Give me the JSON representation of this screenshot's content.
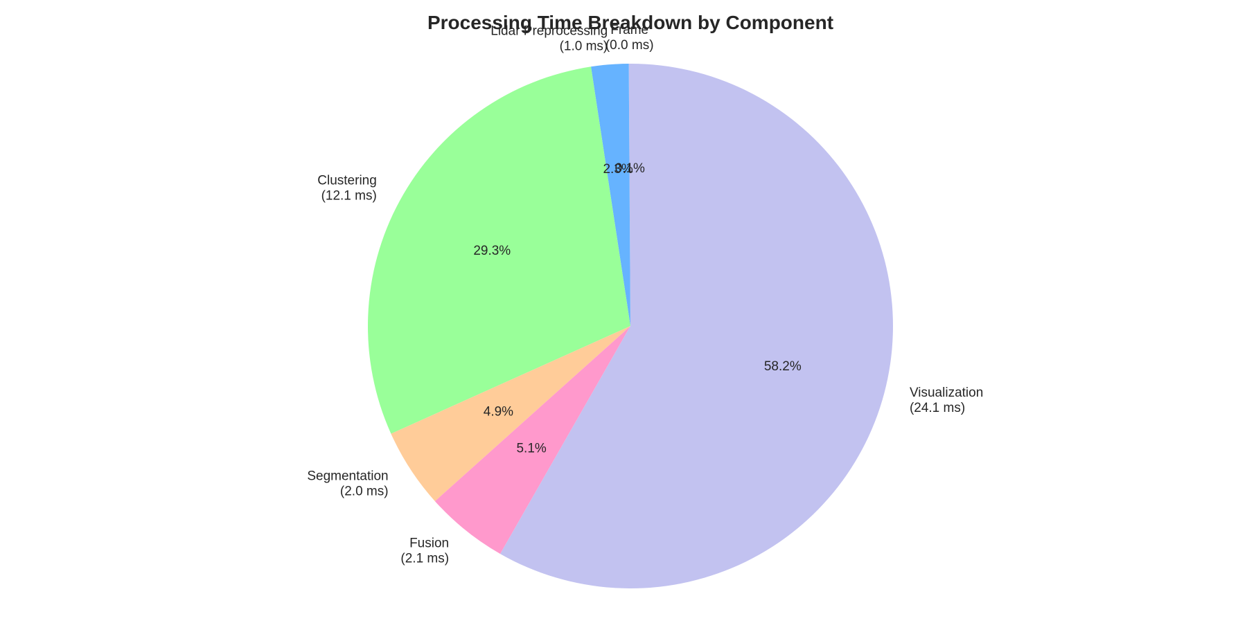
{
  "chart_data": {
    "type": "pie",
    "title": "Processing Time Breakdown by Component",
    "start_angle_deg": 90,
    "direction": "counterclockwise",
    "legend": "none",
    "slices": [
      {
        "label": "Frame",
        "value_text": "(0.0 ms)",
        "value": 0.05,
        "percent": 0.1,
        "percent_label": "0.1%",
        "color": "#c2c2f0"
      },
      {
        "label": "Lidar Preprocessing",
        "value_text": "(1.0 ms)",
        "value": 1.0,
        "percent": 2.3,
        "percent_label": "2.3%",
        "color": "#66b3ff"
      },
      {
        "label": "Clustering",
        "value_text": "(12.1 ms)",
        "value": 12.1,
        "percent": 29.3,
        "percent_label": "29.3%",
        "color": "#99ff99"
      },
      {
        "label": "Segmentation",
        "value_text": "(2.0 ms)",
        "value": 2.0,
        "percent": 4.9,
        "percent_label": "4.9%",
        "color": "#ffcc99"
      },
      {
        "label": "Fusion",
        "value_text": "(2.1 ms)",
        "value": 2.1,
        "percent": 5.1,
        "percent_label": "5.1%",
        "color": "#ff99cc"
      },
      {
        "label": "Visualization",
        "value_text": "(24.1 ms)",
        "value": 24.1,
        "percent": 58.2,
        "percent_label": "58.2%",
        "color": "#c2c2f0"
      }
    ]
  }
}
